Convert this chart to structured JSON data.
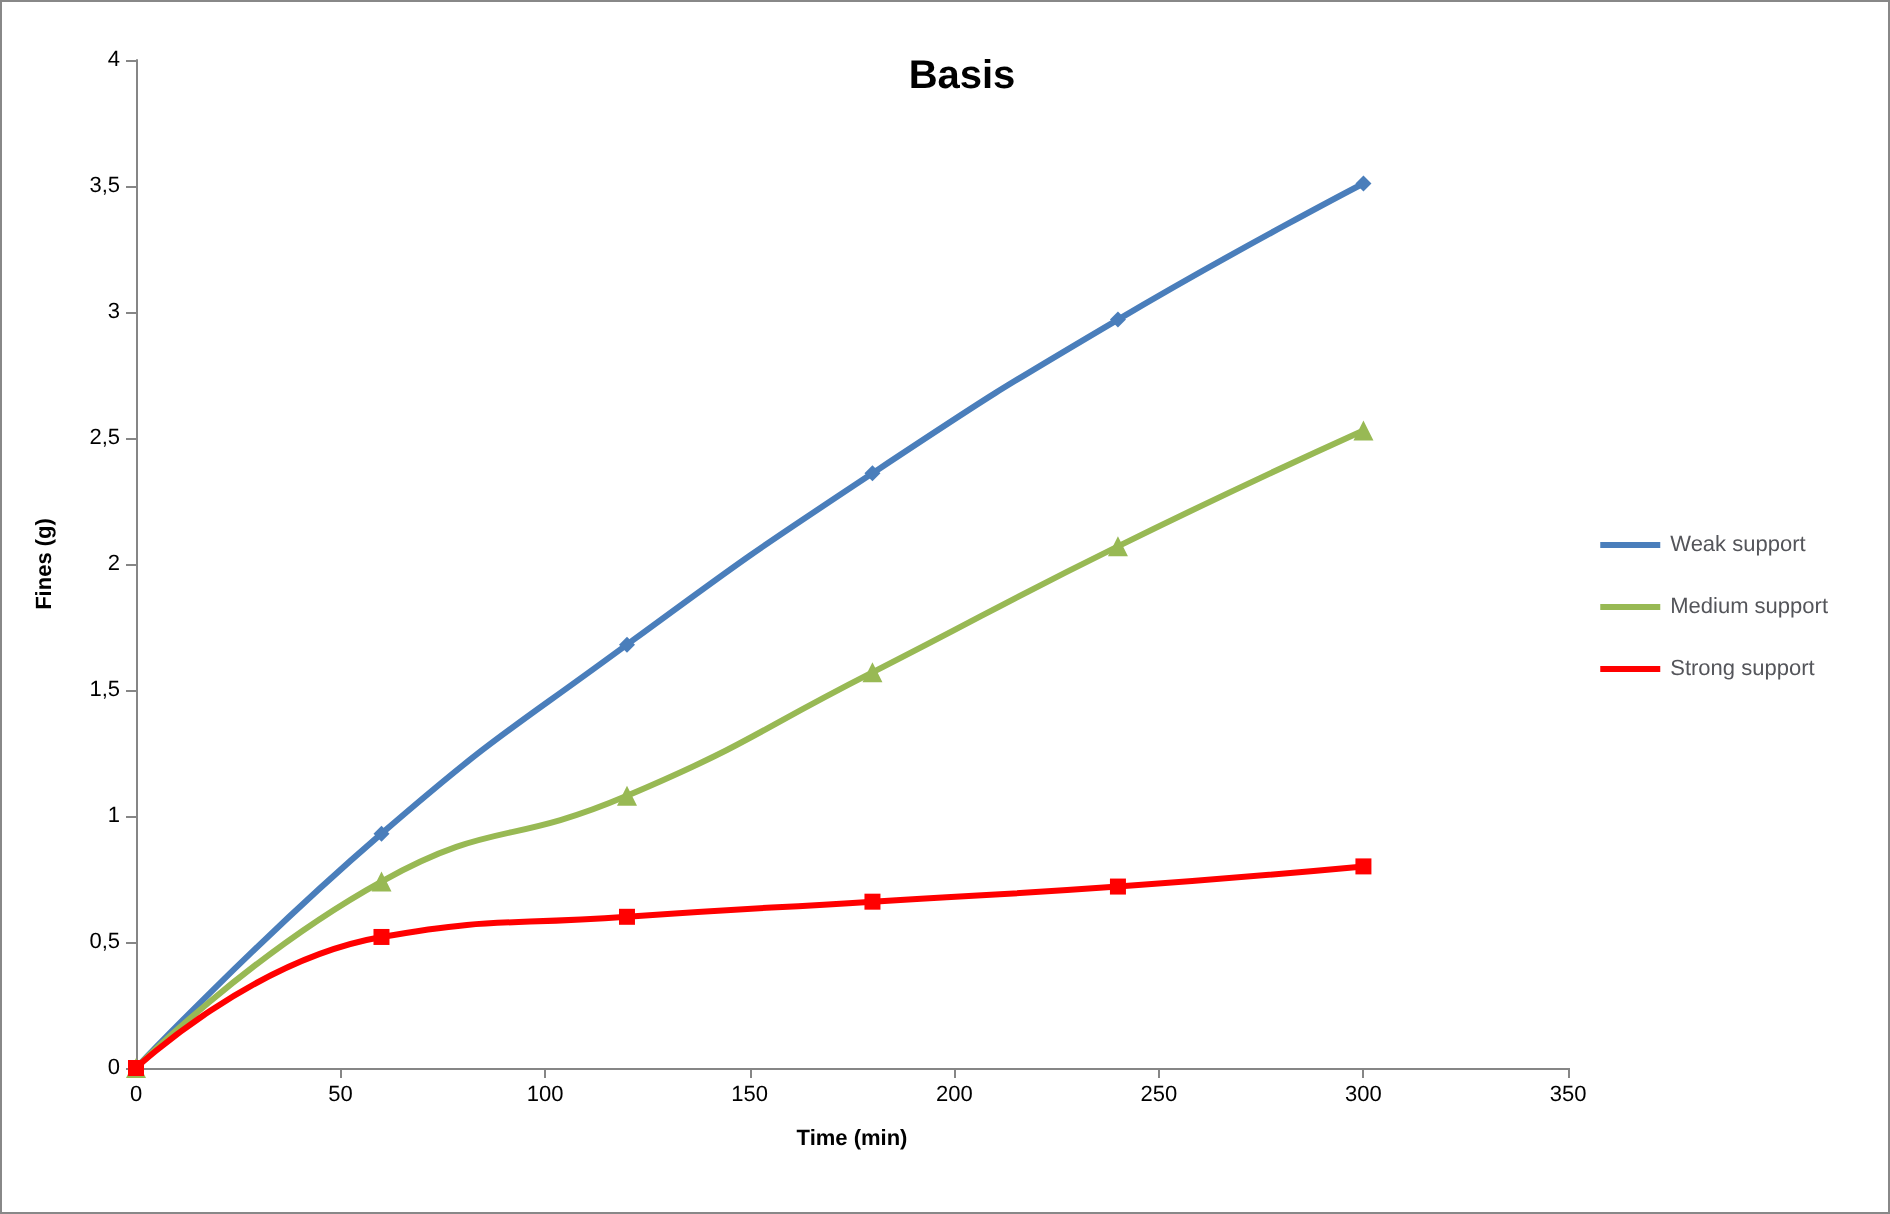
{
  "chart_data": {
    "type": "line",
    "title": "Basis",
    "xlabel": "Time (min)",
    "ylabel": "Fines (g)",
    "x": [
      0,
      60,
      120,
      180,
      240,
      300
    ],
    "series": [
      {
        "name": "Weak support",
        "color": "#4a7ebb",
        "marker": "diamond",
        "values": [
          0,
          0.93,
          1.68,
          2.36,
          2.97,
          3.51
        ]
      },
      {
        "name": "Medium support",
        "color": "#98b954",
        "marker": "triangle",
        "values": [
          0,
          0.74,
          1.08,
          1.57,
          2.07,
          2.53
        ]
      },
      {
        "name": "Strong support",
        "color": "#ff0000",
        "marker": "square",
        "values": [
          0,
          0.52,
          0.6,
          0.66,
          0.72,
          0.8
        ]
      }
    ],
    "xlim": [
      0,
      350
    ],
    "xticks": [
      0,
      50,
      100,
      150,
      200,
      250,
      300,
      350
    ],
    "ylim": [
      0,
      4
    ],
    "yticks": [
      0,
      {
        "value": 0.5,
        "label": "0,5"
      },
      1,
      {
        "value": 1.5,
        "label": "1,5"
      },
      2,
      {
        "value": 2.5,
        "label": "2,5"
      },
      3,
      {
        "value": 3.5,
        "label": "3,5"
      },
      4
    ],
    "grid": false,
    "legend": "right"
  }
}
